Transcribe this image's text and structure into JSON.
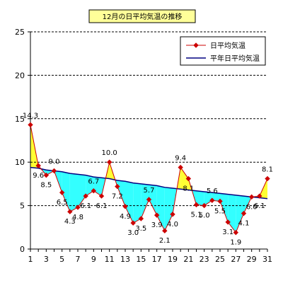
{
  "chart_data": {
    "type": "line",
    "title": "12月の日平均気温の推移",
    "x": [
      1,
      2,
      3,
      4,
      5,
      6,
      7,
      8,
      9,
      10,
      11,
      12,
      13,
      14,
      15,
      16,
      17,
      18,
      19,
      20,
      21,
      22,
      23,
      24,
      25,
      26,
      27,
      28,
      29,
      30,
      31
    ],
    "x_tick_labels": [
      "1",
      "3",
      "5",
      "7",
      "9",
      "11",
      "13",
      "15",
      "17",
      "19",
      "21",
      "23",
      "25",
      "27",
      "29",
      "31"
    ],
    "y_tick_labels": [
      "0",
      "5",
      "10",
      "15",
      "20",
      "25"
    ],
    "ylim": [
      0,
      25
    ],
    "grid": "horizontal dashed",
    "legend_position": "top-right",
    "series": [
      {
        "name": "日平均気温",
        "color": "#cc0000",
        "marker": "diamond",
        "values": [
          14.3,
          9.6,
          8.5,
          9.0,
          6.5,
          4.3,
          4.8,
          6.1,
          6.7,
          6.1,
          10.0,
          7.2,
          4.9,
          3.0,
          3.5,
          5.7,
          3.9,
          2.1,
          4.0,
          9.4,
          8.1,
          5.1,
          5.0,
          5.6,
          5.5,
          3.1,
          1.9,
          4.1,
          6.0,
          6.1,
          8.1
        ],
        "labels": [
          "14.3",
          "9.6",
          "8.5",
          "9.0",
          "6.5",
          "4.3",
          "4.8",
          "6.1",
          "6.7",
          "6.1",
          "10.0",
          "7.2",
          "4.9",
          "3.0",
          "3.5",
          "5.7",
          "3.9",
          "2.1",
          "4.0",
          "9.4",
          "8.1",
          "5.1",
          "5.0",
          "5.6",
          "5.5",
          "3.1",
          "1.9",
          "4.1",
          "6.0",
          "6.1",
          "8.1"
        ]
      },
      {
        "name": "平年日平均気温",
        "color": "#000080",
        "values": [
          9.4,
          9.3,
          9.1,
          9.0,
          8.9,
          8.7,
          8.6,
          8.5,
          8.3,
          8.2,
          8.1,
          7.9,
          7.8,
          7.6,
          7.5,
          7.4,
          7.3,
          7.1,
          7.0,
          6.9,
          6.8,
          6.7,
          6.6,
          6.5,
          6.4,
          6.3,
          6.2,
          6.1,
          6.0,
          5.9,
          5.8
        ]
      }
    ],
    "fill_above_color": "#ffff33",
    "fill_below_color": "#33ffff"
  }
}
